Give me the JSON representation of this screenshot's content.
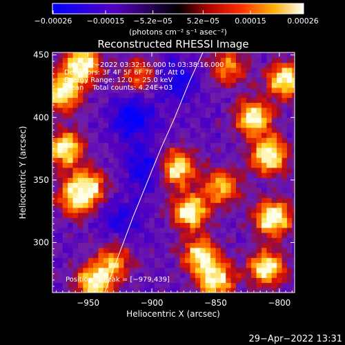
{
  "chart_data": {
    "type": "heatmap",
    "title": "Reconstructed RHESSI Image",
    "xlabel": "Heliocentric X (arcsec)",
    "ylabel": "Heliocentric Y (arcsec)",
    "xlim": [
      -978,
      -788
    ],
    "ylim": [
      260,
      452
    ],
    "xticks": [
      -950,
      -900,
      -850,
      -800
    ],
    "xtick_labels": [
      "−950",
      "−900",
      "−850",
      "−800"
    ],
    "yticks": [
      300,
      350,
      400,
      450
    ],
    "ytick_labels": [
      "300",
      "350",
      "400",
      "450"
    ],
    "colorbar": {
      "range": [
        -0.00026,
        0.00026
      ],
      "ticks": [
        -0.00026,
        -0.00015,
        -5.2e-05,
        5.2e-05,
        0.00015,
        0.00026
      ],
      "tick_labels": [
        "−0.00026",
        "−0.00015",
        "−5.2e−05",
        "5.2e−05",
        "0.00015",
        "0.00026"
      ],
      "unit_label": "(photons cm⁻² s⁻¹ asec⁻²)"
    },
    "annotations": [
      "4−Mar−2022 03:32:16.000 to 03:38:16.000",
      "Detectors: 3F 4F 5F 6F 7F 8F, Att 0",
      "Energy Range: 12.0 − 25.0 keV",
      "Clean    Total counts: 4.24E+03"
    ],
    "peak_label": "Position of Peak = [−979,439]",
    "limb_curve": [
      [
        -937,
        260
      ],
      [
        -926,
        290
      ],
      [
        -915,
        320
      ],
      [
        -903,
        350
      ],
      [
        -893,
        375
      ],
      [
        -882,
        400
      ],
      [
        -870,
        430
      ],
      [
        -860,
        452
      ]
    ],
    "hot_regions": [
      {
        "x": -955,
        "y": 442,
        "weight": 1.0
      },
      {
        "x": -970,
        "y": 420,
        "weight": 0.9
      },
      {
        "x": -968,
        "y": 375,
        "weight": 0.9
      },
      {
        "x": -960,
        "y": 335,
        "weight": 0.7
      },
      {
        "x": -950,
        "y": 345,
        "weight": 0.8
      },
      {
        "x": -945,
        "y": 268,
        "weight": 0.9
      },
      {
        "x": -930,
        "y": 285,
        "weight": 0.6
      },
      {
        "x": -910,
        "y": 435,
        "weight": 0.5
      },
      {
        "x": -880,
        "y": 360,
        "weight": 0.9
      },
      {
        "x": -870,
        "y": 325,
        "weight": 0.9
      },
      {
        "x": -862,
        "y": 290,
        "weight": 0.8
      },
      {
        "x": -850,
        "y": 270,
        "weight": 0.9
      },
      {
        "x": -845,
        "y": 345,
        "weight": 0.7
      },
      {
        "x": -840,
        "y": 440,
        "weight": 0.6
      },
      {
        "x": -820,
        "y": 400,
        "weight": 0.9
      },
      {
        "x": -808,
        "y": 370,
        "weight": 1.0
      },
      {
        "x": -805,
        "y": 320,
        "weight": 1.0
      },
      {
        "x": -810,
        "y": 280,
        "weight": 0.9
      },
      {
        "x": -795,
        "y": 430,
        "weight": 0.9
      }
    ],
    "cool_regions": [
      {
        "x": -915,
        "y": 400,
        "weight": 1.0
      },
      {
        "x": -905,
        "y": 360,
        "weight": 0.8
      },
      {
        "x": -925,
        "y": 320,
        "weight": 0.6
      },
      {
        "x": -880,
        "y": 430,
        "weight": 0.7
      }
    ]
  },
  "footer": {
    "timestamp": "29−Apr−2022 13:31"
  },
  "colors": {
    "background": "#000000",
    "text": "#ffffff"
  }
}
